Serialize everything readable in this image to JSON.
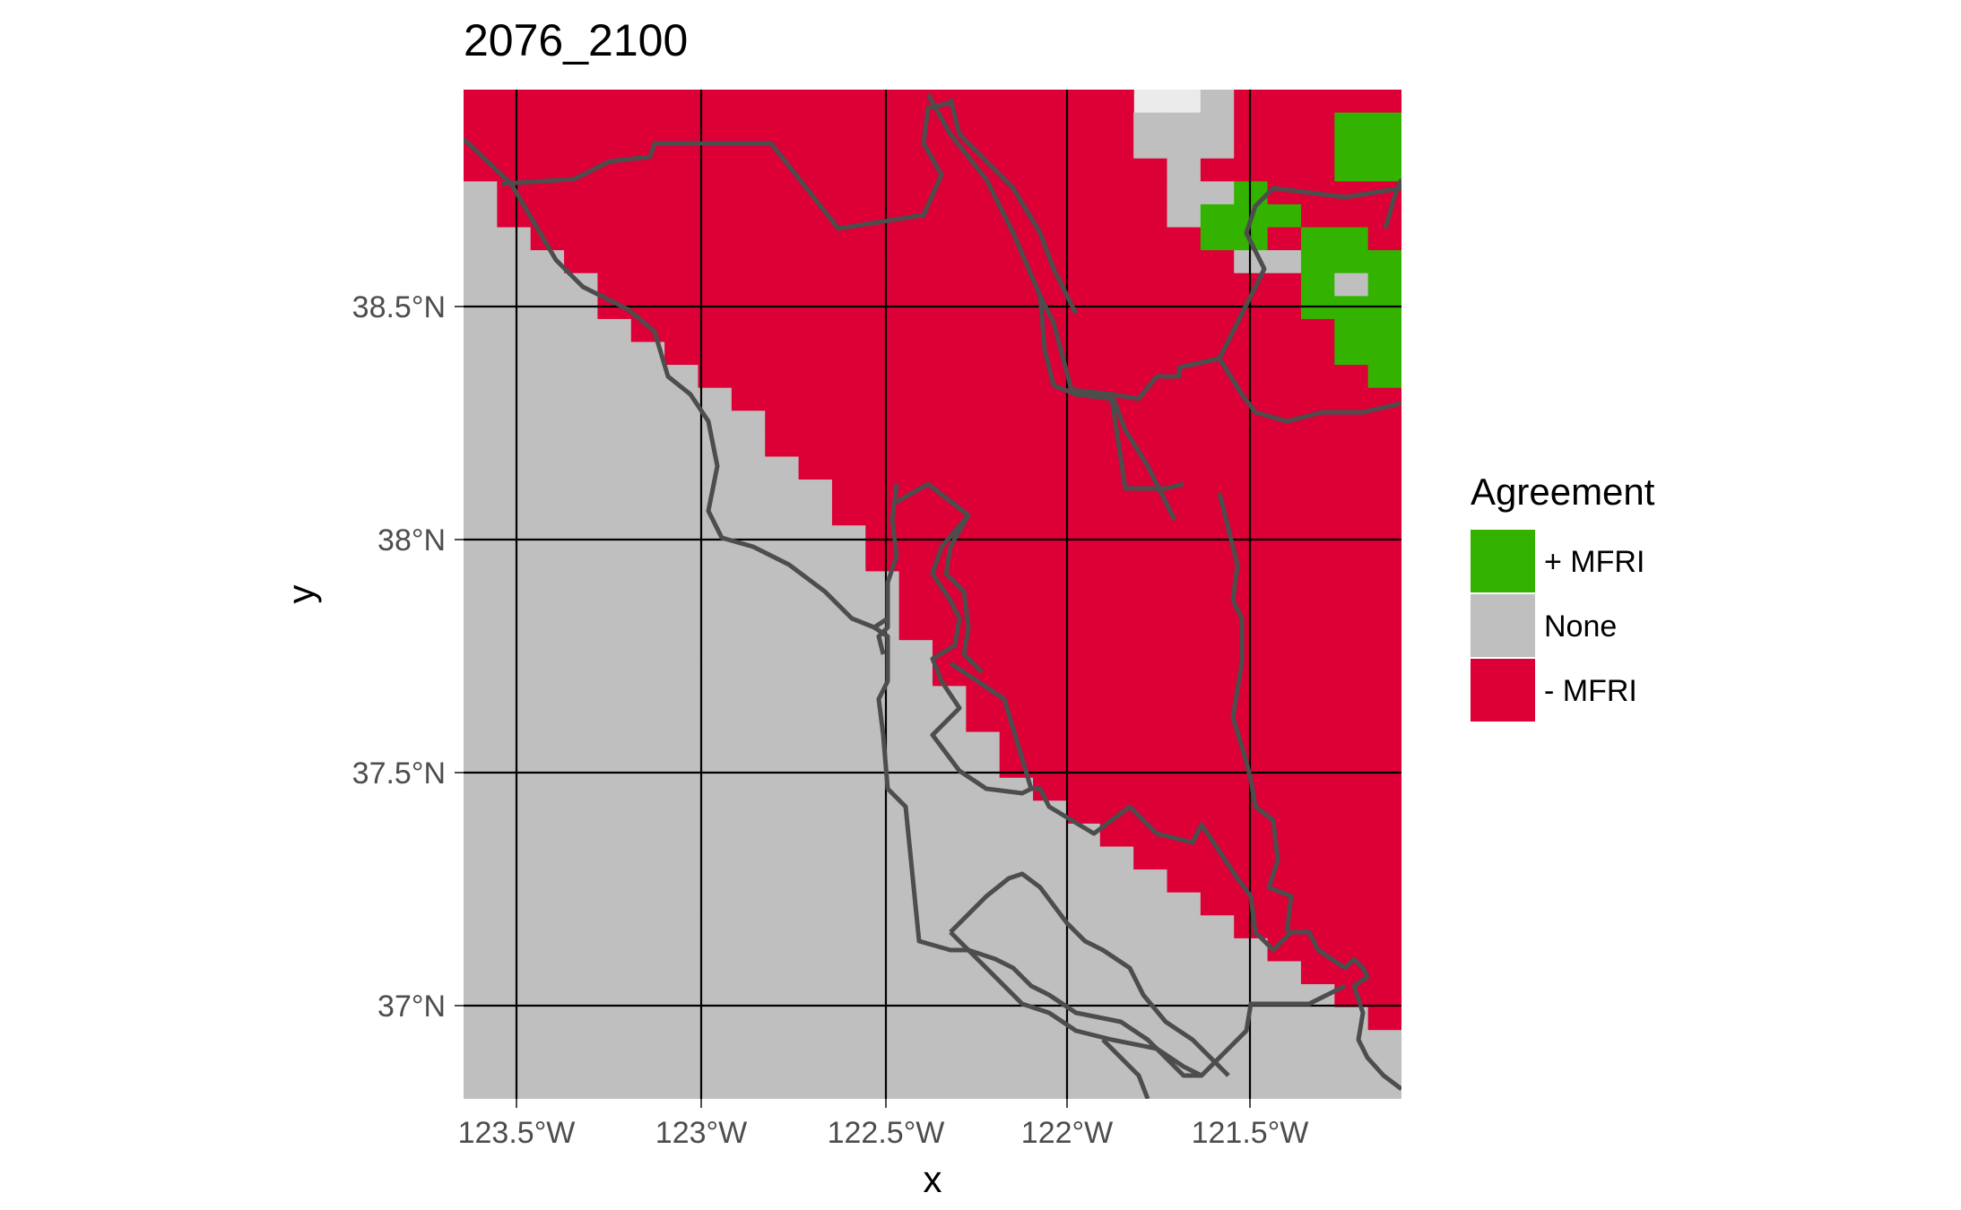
{
  "chart_data": {
    "type": "map-raster",
    "title": "2076_2100",
    "xlabel": "x",
    "ylabel": "y",
    "x_ticks": [
      "123.5°W",
      "123°W",
      "122.5°W",
      "122°W",
      "121.5°W"
    ],
    "x_tick_values": [
      -123.5,
      -123.0,
      -122.5,
      -122.0,
      -121.5
    ],
    "y_ticks": [
      "38.5°N",
      "38°N",
      "37.5°N",
      "37°N"
    ],
    "y_tick_values": [
      38.5,
      38.0,
      37.5,
      37.0
    ],
    "xlim": [
      -123.65,
      -121.08
    ],
    "ylim": [
      36.8,
      38.97
    ],
    "grid": true,
    "legend": {
      "title": "Agreement",
      "position": "right",
      "entries": [
        {
          "label": "+ MFRI",
          "color": "#33b300"
        },
        {
          "label": "None",
          "color": "#bfbfbf"
        },
        {
          "label": "- MFRI",
          "color": "#dc0036"
        }
      ]
    },
    "background_color": "#ebebeb",
    "cell_size_deg": [
      0.0625,
      0.05
    ],
    "raster_value_codes": {
      "r": "- MFRI",
      "g": "+ MFRI",
      "n": "None"
    },
    "raster_grid": [
      "rrrrrrrrrrrrrrrrrrrr..nrrrrr",
      "rrrrrrrrrrrrrrrrrrrrnnnrrrgg",
      "rrrrrrrrrrrrrrrrrrrrnnnrrrgg",
      "rrrrrrrrrrrrrrrrrrrrrnrrrrgg",
      "nrrrrrrrrrrrrrrrrrrrrnngrrrr",
      "nrrrrrrrrrrrrrrrrrrrrngggrrr",
      "nnrrrrrrrrrrrrrrrrrrrrggrggr",
      "nnnrrrrrrrrrrrrrrrrrrrrnnggg",
      "nnnnrrrrrrrrrrrrrrrrrrrrrgng",
      "nnnnrrrrrrrrrrrrrrrrrrrrrggg",
      "nnnnnrrrrrrrrrrrrrrrrrrrrrgg",
      "nnnnnnrrrrrrrrrrrrrrrrrrrrgg",
      "nnnnnnnrrrrrrrrrrrrrrrrrrrrg",
      "nnnnnnnnrrrrrrrrrrrrrrrrrrrr",
      "nnnnnnnnnrrrrrrrrrrrrrrrrrrr",
      "nnnnnnnnnrrrrrrrrrrrrrrrrrrr",
      "nnnnnnnnnnrrrrrrrrrrrrrrrrrr",
      "nnnnnnnnnnnrrrrrrrrrrrrrrrrr",
      "nnnnnnnnnnnrrrrrrrrrrrrrrrrr",
      "nnnnnnnnnnnnrrrrrrrrrrrrrrrr",
      "nnnnnnnnnnnnrrrrrrrrrrrrrrrr",
      "nnnnnnnnnnnnnrrrrrrrrrrrrrrr",
      "nnnnnnnnnnnnnrrrrrrrrrrrrrrr",
      "nnnnnnnnnnnnnrrrrrrrrrrrrrrr",
      "nnnnnnnnnnnnnnrrrrrrrrrrrrrr",
      "nnnnnnnnnnnnnnrrrrrrrrrrrrrr",
      "nnnnnnnnnnnnnnnrrrrrrrrrrrrr",
      "nnnnnnnnnnnnnnnrrrrrrrrrrrrr",
      "nnnnnnnnnnnnnnnnrrrrrrrrrrrr",
      "nnnnnnnnnnnnnnnnrrrrrrrrrrrr",
      "nnnnnnnnnnnnnnnnnrrrrrrrrrrr",
      "nnnnnnnnnnnnnnnnnnrrrrrrrrrr",
      "nnnnnnnnnnnnnnnnnnnrrrrrrrrr",
      "nnnnnnnnnnnnnnnnnnnnrrrrrrrr",
      "nnnnnnnnnnnnnnnnnnnnnrrrrrrr",
      "nnnnnnnnnnnnnnnnnnnnnnrrrrrr",
      "nnnnnnnnnnnnnnnnnnnnnnnrrrrr",
      "nnnnnnnnnnnnnnnnnnnnnnnnrrrr",
      "nnnnnnnnnnnnnnnnnnnnnnnnnrrr",
      "nnnnnnnnnnnnnnnnnnnnnnnnnnrr",
      "nnnnnnnnnnnnnnnnnnnnnnnnnnnr",
      "nnnnnnnnnnnnnnnnnnnnnnnnnnnn",
      "nnnnnnnnnnnnnnnnnnnnnnnnnnnn",
      "nnnnnnnnnnnnnnnnnnnnnnnnnnnn"
    ]
  }
}
